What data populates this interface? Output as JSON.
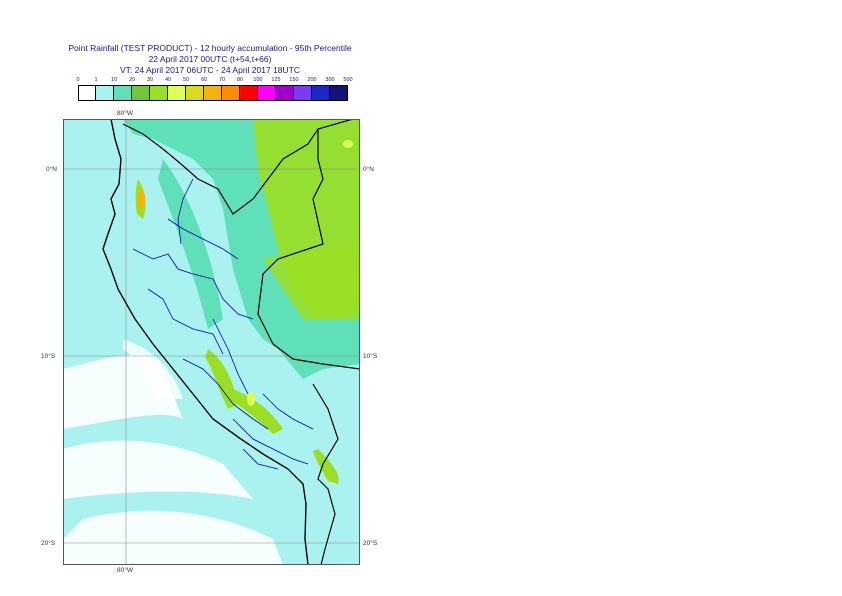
{
  "title": {
    "line1": "Point Rainfall (TEST PRODUCT) - 12 hourly accumulation - 95th Percentile",
    "line2": "22 April 2017 00UTC (t+54,t+66)",
    "line3": "VT: 24 April 2017 06UTC - 24 April 2017 18UTC"
  },
  "legend": {
    "ticks": [
      "0",
      "1",
      "10",
      "20",
      "30",
      "40",
      "50",
      "60",
      "70",
      "80",
      "100",
      "125",
      "150",
      "200",
      "300",
      "500"
    ],
    "colors": [
      "#ffffff",
      "#a9f2f0",
      "#5fe0b8",
      "#74c53a",
      "#9adf24",
      "#dfff57",
      "#d9dc1e",
      "#f1b40a",
      "#ff8c00",
      "#ff0000",
      "#ff00ff",
      "#a000c8",
      "#7a3cf0",
      "#1e28c8",
      "#141478"
    ]
  },
  "map": {
    "lon_labels_top": [
      "80°W"
    ],
    "lon_labels_bottom": [
      "80°W"
    ],
    "lat_labels_left": [
      "0°N",
      "10°S",
      "20°S"
    ],
    "lat_labels_right": [
      "0°N",
      "10°S",
      "20°S"
    ],
    "colors": {
      "ocean_low": "#a9f2f0",
      "land_mid": "#5fe0b8",
      "highland": "#9adf24",
      "peak": "#dfff57",
      "coast": "#000000",
      "border": "#0000b4"
    }
  }
}
